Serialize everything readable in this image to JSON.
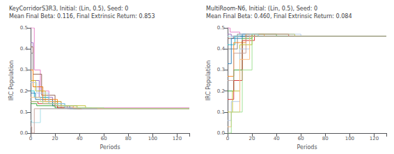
{
  "chart_data": [
    {
      "type": "step",
      "title": "KeyCorridorS3R3, Initial: (Lin, 0.5), Seed: 0\nMean Final Beta: 0.116, Final Extrinsic Return: 0.853",
      "xlabel": "Periods",
      "ylabel": "IRC Population",
      "xlim": [
        0,
        130
      ],
      "ylim": [
        0,
        0.5
      ],
      "xticks": [
        0,
        20,
        40,
        60,
        80,
        100,
        120
      ],
      "yticks": [
        {
          "value": 0,
          "label": "0.0"
        },
        0.1,
        0.2,
        0.3,
        0.4,
        0.5
      ],
      "grid": false,
      "series": [
        {
          "color": "#e377c2",
          "x": [
            0,
            3,
            3,
            8,
            8,
            15,
            15,
            25,
            25,
            130
          ],
          "values": [
            0.5,
            0.5,
            0.3,
            0.3,
            0.2,
            0.2,
            0.15,
            0.15,
            0.12,
            0.12
          ]
        },
        {
          "color": "#9467bd",
          "x": [
            0,
            2,
            2,
            7,
            7,
            18,
            18,
            30,
            30,
            130
          ],
          "values": [
            0.43,
            0.43,
            0.25,
            0.25,
            0.17,
            0.17,
            0.13,
            0.13,
            0.116,
            0.116
          ]
        },
        {
          "color": "#8c564b",
          "x": [
            0,
            2,
            2,
            9,
            9,
            20,
            20,
            35,
            35,
            130
          ],
          "values": [
            0.41,
            0.41,
            0.28,
            0.28,
            0.18,
            0.18,
            0.13,
            0.13,
            0.116,
            0.116
          ]
        },
        {
          "color": "#7f7f7f",
          "x": [
            0,
            2,
            2,
            10,
            10,
            22,
            22,
            40,
            40,
            130
          ],
          "values": [
            0.38,
            0.38,
            0.22,
            0.22,
            0.15,
            0.15,
            0.12,
            0.12,
            0.116,
            0.116
          ]
        },
        {
          "color": "#bcbd22",
          "x": [
            0,
            4,
            4,
            12,
            12,
            25,
            25,
            45,
            45,
            130
          ],
          "values": [
            0.25,
            0.25,
            0.2,
            0.2,
            0.15,
            0.15,
            0.13,
            0.13,
            0.116,
            0.116
          ]
        },
        {
          "color": "#17becf",
          "x": [
            0,
            3,
            3,
            15,
            15,
            28,
            28,
            50,
            50,
            130
          ],
          "values": [
            0.2,
            0.2,
            0.17,
            0.17,
            0.14,
            0.14,
            0.12,
            0.12,
            0.116,
            0.116
          ]
        },
        {
          "color": "#1f77b4",
          "x": [
            0,
            4,
            4,
            18,
            18,
            32,
            32,
            130
          ],
          "values": [
            0.19,
            0.19,
            0.16,
            0.16,
            0.13,
            0.13,
            0.116,
            0.116
          ]
        },
        {
          "color": "#ff7f0e",
          "x": [
            0,
            2,
            2,
            10,
            10,
            22,
            22,
            38,
            38,
            130
          ],
          "values": [
            0.3,
            0.3,
            0.22,
            0.22,
            0.16,
            0.16,
            0.13,
            0.13,
            0.116,
            0.116
          ]
        },
        {
          "color": "#2ca02c",
          "x": [
            0,
            5,
            5,
            20,
            20,
            35,
            35,
            130
          ],
          "values": [
            0.14,
            0.14,
            0.13,
            0.13,
            0.12,
            0.12,
            0.116,
            0.116
          ]
        },
        {
          "color": "#d62728",
          "x": [
            0,
            6,
            6,
            22,
            22,
            38,
            38,
            130
          ],
          "values": [
            0.15,
            0.15,
            0.14,
            0.14,
            0.12,
            0.12,
            0.116,
            0.116
          ]
        },
        {
          "color": "#9edae5",
          "x": [
            0,
            1,
            1,
            8,
            8,
            130
          ],
          "values": [
            0.06,
            0.06,
            0.05,
            0.05,
            0.116,
            0.116
          ]
        },
        {
          "color": "#c49c94",
          "x": [
            0,
            1,
            1,
            3,
            3,
            130
          ],
          "values": [
            0.03,
            0.03,
            0.0,
            0.0,
            0.116,
            0.116
          ]
        },
        {
          "color": "#aec7e8",
          "x": [
            0,
            5,
            5,
            15,
            15,
            28,
            28,
            42,
            42,
            130
          ],
          "values": [
            0.24,
            0.24,
            0.19,
            0.19,
            0.14,
            0.14,
            0.12,
            0.12,
            0.116,
            0.116
          ]
        },
        {
          "color": "#ffbb78",
          "x": [
            0,
            8,
            8,
            20,
            20,
            35,
            35,
            55,
            55,
            130
          ],
          "values": [
            0.17,
            0.17,
            0.15,
            0.15,
            0.13,
            0.13,
            0.12,
            0.12,
            0.116,
            0.116
          ]
        },
        {
          "color": "#98df8a",
          "x": [
            0,
            10,
            10,
            22,
            22,
            38,
            38,
            60,
            60,
            130
          ],
          "values": [
            0.15,
            0.15,
            0.14,
            0.14,
            0.13,
            0.13,
            0.12,
            0.12,
            0.116,
            0.116
          ]
        }
      ]
    },
    {
      "type": "step",
      "title": "MultiRoom-N6, Initial: (Lin, 0.5), Seed: 0\nMean Final Beta: 0.460, Final Extrinsic Return: 0.084",
      "xlabel": "Periods",
      "ylabel": "IRC Population",
      "xlim": [
        0,
        130
      ],
      "ylim": [
        0,
        0.5
      ],
      "xticks": [
        0,
        20,
        40,
        60,
        80,
        100,
        120
      ],
      "yticks": [
        {
          "value": 0,
          "label": "0.0"
        },
        0.1,
        0.2,
        0.3,
        0.4,
        0.5
      ],
      "grid": false,
      "series": [
        {
          "color": "#e377c2",
          "x": [
            0,
            2,
            2,
            10,
            10,
            20,
            20,
            130
          ],
          "values": [
            0.5,
            0.5,
            0.48,
            0.48,
            0.47,
            0.47,
            0.46,
            0.46
          ]
        },
        {
          "color": "#9467bd",
          "x": [
            0,
            3,
            3,
            130
          ],
          "values": [
            0.47,
            0.47,
            0.46,
            0.46
          ]
        },
        {
          "color": "#8c564b",
          "x": [
            0,
            5,
            5,
            130
          ],
          "values": [
            0.45,
            0.45,
            0.46,
            0.46
          ]
        },
        {
          "color": "#17becf",
          "x": [
            0,
            6,
            6,
            130
          ],
          "values": [
            0.42,
            0.42,
            0.46,
            0.46
          ]
        },
        {
          "color": "#7f7f7f",
          "x": [
            0,
            8,
            8,
            15,
            15,
            130
          ],
          "values": [
            0.4,
            0.4,
            0.47,
            0.47,
            0.46,
            0.46
          ]
        },
        {
          "color": "#1f77b4",
          "x": [
            0,
            3,
            3,
            12,
            12,
            25,
            25,
            130
          ],
          "values": [
            0.33,
            0.33,
            0.45,
            0.45,
            0.47,
            0.47,
            0.46,
            0.46
          ]
        },
        {
          "color": "#ff7f0e",
          "x": [
            0,
            5,
            5,
            15,
            15,
            30,
            30,
            130
          ],
          "values": [
            0.27,
            0.27,
            0.43,
            0.43,
            0.47,
            0.47,
            0.46,
            0.46
          ]
        },
        {
          "color": "#2ca02c",
          "x": [
            0,
            5,
            5,
            12,
            12,
            20,
            20,
            40,
            40,
            130
          ],
          "values": [
            0.2,
            0.2,
            0.3,
            0.3,
            0.45,
            0.45,
            0.47,
            0.47,
            0.46,
            0.46
          ]
        },
        {
          "color": "#d62728",
          "x": [
            0,
            5,
            5,
            12,
            12,
            22,
            22,
            50,
            50,
            130
          ],
          "values": [
            0.16,
            0.16,
            0.25,
            0.25,
            0.44,
            0.44,
            0.47,
            0.47,
            0.46,
            0.46
          ]
        },
        {
          "color": "#bcbd22",
          "x": [
            0,
            4,
            4,
            10,
            10,
            20,
            20,
            55,
            55,
            130
          ],
          "values": [
            0.1,
            0.1,
            0.2,
            0.2,
            0.42,
            0.42,
            0.47,
            0.47,
            0.46,
            0.46
          ]
        },
        {
          "color": "#aec7e8",
          "x": [
            0,
            3,
            3,
            10,
            10,
            18,
            18,
            60,
            60,
            130
          ],
          "values": [
            0.06,
            0.06,
            0.15,
            0.15,
            0.4,
            0.4,
            0.47,
            0.47,
            0.46,
            0.46
          ]
        },
        {
          "color": "#ffbb78",
          "x": [
            0,
            3,
            3,
            10,
            10,
            18,
            18,
            130
          ],
          "values": [
            0.03,
            0.03,
            0.1,
            0.1,
            0.35,
            0.35,
            0.46,
            0.46
          ]
        },
        {
          "color": "#98df8a",
          "x": [
            0,
            3,
            3,
            12,
            12,
            20,
            20,
            130
          ],
          "values": [
            0.0,
            0.0,
            0.1,
            0.1,
            0.3,
            0.3,
            0.46,
            0.46
          ]
        },
        {
          "color": "#9edae5",
          "x": [
            0,
            10,
            10,
            25,
            25,
            130
          ],
          "values": [
            0.46,
            0.46,
            0.47,
            0.47,
            0.46,
            0.46
          ]
        },
        {
          "color": "#c49c94",
          "x": [
            0,
            5,
            5,
            15,
            15,
            130
          ],
          "values": [
            0.25,
            0.25,
            0.38,
            0.38,
            0.46,
            0.46
          ]
        }
      ]
    }
  ]
}
